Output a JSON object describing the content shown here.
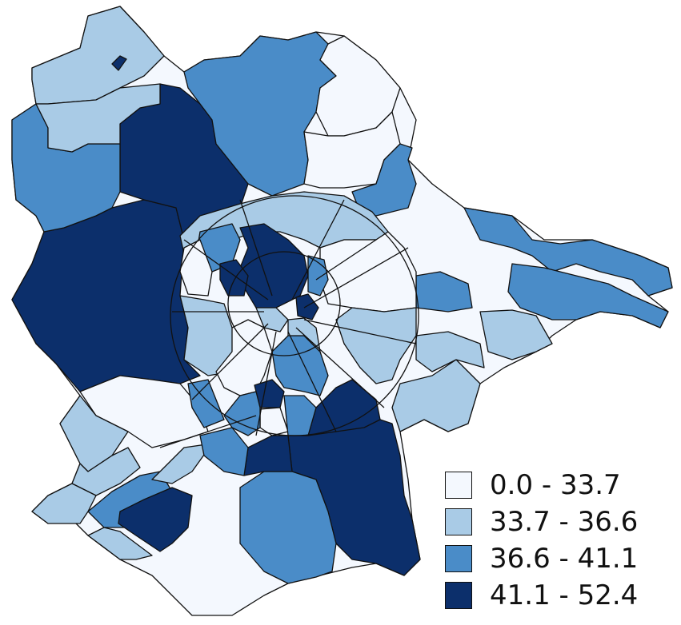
{
  "map": {
    "colors": {
      "class1": "#f4f8fe",
      "class2": "#a9cbe6",
      "class3": "#4a8cc8",
      "class4": "#0c2f6b",
      "border": "#111111"
    }
  },
  "legend": {
    "items": [
      {
        "label": "0.0 - 33.7",
        "color": "#f4f8fe"
      },
      {
        "label": "33.7 - 36.6",
        "color": "#a9cbe6"
      },
      {
        "label": "36.6 - 41.1",
        "color": "#4a8cc8"
      },
      {
        "label": "41.1 - 52.4",
        "color": "#0c2f6b"
      }
    ]
  }
}
